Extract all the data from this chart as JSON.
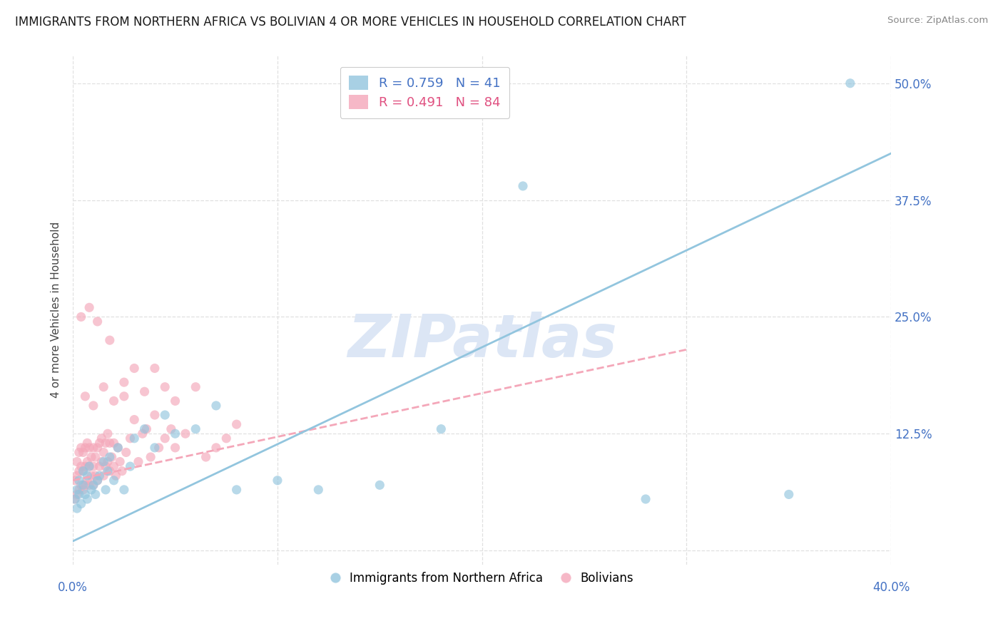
{
  "title": "IMMIGRANTS FROM NORTHERN AFRICA VS BOLIVIAN 4 OR MORE VEHICLES IN HOUSEHOLD CORRELATION CHART",
  "source": "Source: ZipAtlas.com",
  "ylabel": "4 or more Vehicles in Household",
  "xlim": [
    0.0,
    0.4
  ],
  "ylim": [
    -0.015,
    0.53
  ],
  "yticks": [
    0.0,
    0.125,
    0.25,
    0.375,
    0.5
  ],
  "ytick_labels": [
    "",
    "12.5%",
    "25.0%",
    "37.5%",
    "50.0%"
  ],
  "xticks": [
    0.0,
    0.1,
    0.2,
    0.3,
    0.4
  ],
  "grid_color": "#e0e0e0",
  "background_color": "#ffffff",
  "watermark": "ZIPatlas",
  "title_fontsize": 12,
  "axis_label_fontsize": 11,
  "tick_fontsize": 12,
  "axis_color": "#4472c4",
  "watermark_color": "#dce6f5",
  "watermark_fontsize": 60,
  "series": [
    {
      "name": "Immigrants from Northern Africa",
      "color": "#92c5de",
      "R": 0.759,
      "N": 41,
      "x": [
        0.001,
        0.002,
        0.002,
        0.003,
        0.003,
        0.004,
        0.005,
        0.005,
        0.006,
        0.007,
        0.007,
        0.008,
        0.009,
        0.01,
        0.011,
        0.012,
        0.013,
        0.015,
        0.016,
        0.017,
        0.018,
        0.02,
        0.022,
        0.025,
        0.028,
        0.03,
        0.035,
        0.04,
        0.045,
        0.05,
        0.06,
        0.07,
        0.08,
        0.1,
        0.12,
        0.15,
        0.18,
        0.22,
        0.28,
        0.35,
        0.38
      ],
      "y": [
        0.055,
        0.045,
        0.065,
        0.06,
        0.075,
        0.05,
        0.07,
        0.085,
        0.06,
        0.08,
        0.055,
        0.09,
        0.065,
        0.07,
        0.06,
        0.075,
        0.08,
        0.095,
        0.065,
        0.085,
        0.1,
        0.075,
        0.11,
        0.065,
        0.09,
        0.12,
        0.13,
        0.11,
        0.145,
        0.125,
        0.13,
        0.155,
        0.065,
        0.075,
        0.065,
        0.07,
        0.13,
        0.39,
        0.055,
        0.06,
        0.5
      ],
      "trend_x": [
        0.0,
        0.4
      ],
      "trend_y": [
        0.01,
        0.425
      ]
    },
    {
      "name": "Bolivians",
      "color": "#f4a7b9",
      "R": 0.491,
      "N": 84,
      "x": [
        0.001,
        0.001,
        0.002,
        0.002,
        0.002,
        0.003,
        0.003,
        0.003,
        0.004,
        0.004,
        0.004,
        0.005,
        0.005,
        0.005,
        0.006,
        0.006,
        0.006,
        0.007,
        0.007,
        0.007,
        0.008,
        0.008,
        0.008,
        0.009,
        0.009,
        0.01,
        0.01,
        0.01,
        0.011,
        0.011,
        0.012,
        0.012,
        0.013,
        0.013,
        0.014,
        0.014,
        0.015,
        0.015,
        0.016,
        0.016,
        0.017,
        0.017,
        0.018,
        0.018,
        0.019,
        0.02,
        0.02,
        0.021,
        0.022,
        0.023,
        0.024,
        0.025,
        0.026,
        0.028,
        0.03,
        0.032,
        0.034,
        0.036,
        0.038,
        0.04,
        0.042,
        0.045,
        0.048,
        0.05,
        0.055,
        0.06,
        0.065,
        0.07,
        0.075,
        0.08,
        0.006,
        0.01,
        0.015,
        0.02,
        0.025,
        0.03,
        0.035,
        0.04,
        0.045,
        0.05,
        0.004,
        0.008,
        0.012,
        0.018
      ],
      "y": [
        0.055,
        0.075,
        0.06,
        0.08,
        0.095,
        0.065,
        0.085,
        0.105,
        0.07,
        0.09,
        0.11,
        0.065,
        0.085,
        0.105,
        0.07,
        0.09,
        0.11,
        0.075,
        0.095,
        0.115,
        0.07,
        0.09,
        0.11,
        0.08,
        0.1,
        0.07,
        0.09,
        0.11,
        0.08,
        0.1,
        0.075,
        0.11,
        0.09,
        0.115,
        0.095,
        0.12,
        0.08,
        0.105,
        0.09,
        0.115,
        0.095,
        0.125,
        0.085,
        0.115,
        0.1,
        0.09,
        0.115,
        0.08,
        0.11,
        0.095,
        0.085,
        0.165,
        0.105,
        0.12,
        0.14,
        0.095,
        0.125,
        0.13,
        0.1,
        0.145,
        0.11,
        0.12,
        0.13,
        0.11,
        0.125,
        0.175,
        0.1,
        0.11,
        0.12,
        0.135,
        0.165,
        0.155,
        0.175,
        0.16,
        0.18,
        0.195,
        0.17,
        0.195,
        0.175,
        0.16,
        0.25,
        0.26,
        0.245,
        0.225
      ],
      "trend_x": [
        0.0,
        0.3
      ],
      "trend_y": [
        0.075,
        0.215
      ]
    }
  ]
}
